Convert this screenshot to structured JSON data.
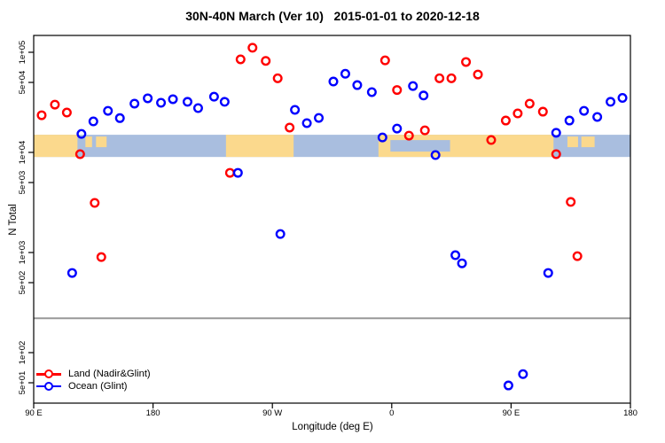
{
  "title": "30N-40N March (Ver 10)   2015-01-01 to 2020-12-18",
  "chart_data": {
    "type": "scatter",
    "title": "30N-40N March (Ver 10)   2015-01-01 to 2020-12-18",
    "xlabel": "Longitude (deg E)",
    "ylabel": "N Total",
    "x_axis": {
      "note": "longitude wraps: 90E eastward to 180 (450 deg span)",
      "range_continuous_deg": [
        90,
        540
      ],
      "ticks": [
        {
          "lon": 90,
          "label": "90 E"
        },
        {
          "lon": 180,
          "label": "180"
        },
        {
          "lon": 270,
          "label": "90 W"
        },
        {
          "lon": 360,
          "label": "0"
        },
        {
          "lon": 450,
          "label": "90 E"
        },
        {
          "lon": 540,
          "label": "180"
        }
      ]
    },
    "y_axis": {
      "scale": "log10",
      "ylim": [
        31,
        147000
      ],
      "ticks": [
        {
          "value": 100000,
          "label": "1e+05"
        },
        {
          "value": 50000,
          "label": "5e+04"
        },
        {
          "value": 10000,
          "label": "1e+04"
        },
        {
          "value": 5000,
          "label": "5e+03"
        },
        {
          "value": 1000,
          "label": "1e+03"
        },
        {
          "value": 500,
          "label": "5e+02"
        },
        {
          "value": 100,
          "label": "1e+02"
        },
        {
          "value": 50,
          "label": "5e+01"
        }
      ]
    },
    "reference_line": {
      "value": 220,
      "color": "#999999"
    },
    "map_band": {
      "description": "30N-40N latitude strip world map",
      "value_top": 15000,
      "value_bottom": 9000,
      "ocean_color": "#a9bedf",
      "land_color": "#fbd98d",
      "land_segments": [
        [
          90,
          123
        ],
        [
          235,
          286
        ],
        [
          350,
          482
        ]
      ],
      "island_segments": [
        [
          129,
          134
        ],
        [
          137,
          145
        ],
        [
          492.5,
          500.5
        ],
        [
          503,
          513
        ]
      ],
      "ocean_overlays": [
        [
          359,
          404
        ]
      ]
    },
    "series": [
      {
        "name": "Land (Nadir&Glint)",
        "color": "#ff0000",
        "points": [
          [
            96,
            23500
          ],
          [
            106,
            30000
          ],
          [
            115,
            25000
          ],
          [
            246,
            85000
          ],
          [
            255,
            111000
          ],
          [
            265,
            82000
          ],
          [
            274,
            55000
          ],
          [
            283,
            17700
          ],
          [
            355,
            83000
          ],
          [
            364,
            42000
          ],
          [
            373,
            14700
          ],
          [
            385,
            16600
          ],
          [
            396,
            55000
          ],
          [
            405,
            55000
          ],
          [
            416,
            80000
          ],
          [
            425,
            60000
          ],
          [
            435,
            13300
          ],
          [
            446,
            20800
          ],
          [
            455,
            24500
          ],
          [
            464,
            30700
          ],
          [
            474,
            25500
          ],
          [
            484,
            9600
          ],
          [
            125,
            9600
          ],
          [
            238,
            6250
          ],
          [
            136,
            3130
          ],
          [
            495,
            3200
          ],
          [
            141,
            900
          ],
          [
            500,
            920
          ]
        ]
      },
      {
        "name": "Ocean (Glint)",
        "color": "#0000ff",
        "points": [
          [
            126,
            15300
          ],
          [
            135,
            20400
          ],
          [
            146,
            26000
          ],
          [
            155,
            22000
          ],
          [
            166,
            30700
          ],
          [
            176,
            34700
          ],
          [
            186,
            31300
          ],
          [
            195,
            34000
          ],
          [
            206,
            32000
          ],
          [
            214,
            27700
          ],
          [
            226,
            36000
          ],
          [
            234,
            32000
          ],
          [
            287,
            26600
          ],
          [
            296,
            19600
          ],
          [
            305,
            22100
          ],
          [
            316,
            51000
          ],
          [
            325,
            61000
          ],
          [
            334,
            47000
          ],
          [
            345,
            40000
          ],
          [
            353,
            14100
          ],
          [
            364,
            17300
          ],
          [
            376,
            46000
          ],
          [
            384,
            37000
          ],
          [
            393,
            9400
          ],
          [
            484,
            15700
          ],
          [
            494,
            20800
          ],
          [
            505,
            26000
          ],
          [
            515,
            22600
          ],
          [
            525,
            32000
          ],
          [
            534,
            35000
          ],
          [
            244,
            6250
          ],
          [
            276,
            1530
          ],
          [
            408,
            940
          ],
          [
            413,
            780
          ],
          [
            478,
            625
          ],
          [
            119,
            625
          ],
          [
            448,
            47
          ],
          [
            459,
            61
          ]
        ]
      }
    ]
  },
  "legend": {
    "items": [
      {
        "label": "Land (Nadir&Glint)",
        "color": "#ff0000"
      },
      {
        "label": "Ocean (Glint)",
        "color": "#0000ff"
      }
    ]
  }
}
